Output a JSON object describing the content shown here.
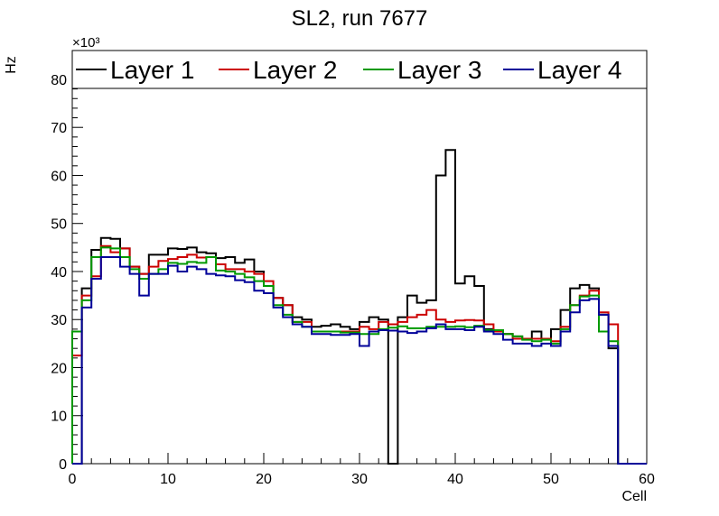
{
  "chart_data": {
    "type": "line",
    "title": "SL2, run 7677",
    "xlabel": "Cell",
    "ylabel": "Hz",
    "y_multiplier": "×10³",
    "xlim": [
      0,
      60
    ],
    "ylim": [
      0,
      86
    ],
    "x_ticks": [
      "0",
      "10",
      "20",
      "30",
      "40",
      "50",
      "60"
    ],
    "y_ticks": [
      "0",
      "10",
      "20",
      "30",
      "40",
      "50",
      "60",
      "70",
      "80"
    ],
    "bin_edges": [
      0,
      1,
      2,
      3,
      4,
      5,
      6,
      7,
      8,
      9,
      10,
      11,
      12,
      13,
      14,
      15,
      16,
      17,
      18,
      19,
      20,
      21,
      22,
      23,
      24,
      25,
      26,
      27,
      28,
      29,
      30,
      31,
      32,
      33,
      34,
      35,
      36,
      37,
      38,
      39,
      40,
      41,
      42,
      43,
      44,
      45,
      46,
      47,
      48,
      49,
      50,
      51,
      52,
      53,
      54,
      55,
      56,
      57,
      58,
      59,
      60
    ],
    "legend_position": "top, full width",
    "series": [
      {
        "name": "Layer 1",
        "color": "#000000",
        "values": [
          0,
          36.5,
          44.5,
          47,
          46.8,
          44.8,
          41,
          39.5,
          43.5,
          43.5,
          44.8,
          44.7,
          45,
          44,
          43.8,
          42.8,
          43,
          41.8,
          42.5,
          40,
          37,
          34.5,
          33,
          30.5,
          30,
          28.5,
          28.7,
          29,
          28.5,
          28,
          29.5,
          30.5,
          30,
          0,
          30.5,
          35,
          33.5,
          34,
          60,
          65.3,
          37.5,
          39,
          37,
          28,
          27.5,
          27,
          26.5,
          26,
          27.5,
          26,
          28,
          32,
          36.5,
          37.2,
          36.5,
          31,
          24,
          0,
          0,
          0
        ]
      },
      {
        "name": "Layer 2",
        "color": "#cc0000",
        "values": [
          22.5,
          35,
          39,
          45.3,
          44,
          44.8,
          41,
          39.5,
          41,
          42.2,
          42.6,
          43,
          43.5,
          42.9,
          43,
          41.5,
          40.5,
          40.5,
          40,
          39.5,
          38,
          34.5,
          33,
          29.5,
          29.5,
          27.5,
          27.5,
          27.5,
          27.5,
          27.5,
          28.5,
          28,
          29.5,
          29,
          29.5,
          30.5,
          31,
          32,
          30,
          29.5,
          29.8,
          29.9,
          29.8,
          29,
          27.5,
          27,
          26,
          26,
          26,
          26,
          25.5,
          28.5,
          33,
          35,
          36,
          31.5,
          29,
          0,
          0,
          0
        ]
      },
      {
        "name": "Layer 3",
        "color": "#009900",
        "values": [
          27.5,
          34,
          43,
          45,
          44.8,
          43,
          40.5,
          38.5,
          39.5,
          40.5,
          41.8,
          41.6,
          42,
          41.8,
          43,
          40.2,
          40,
          39.5,
          38.8,
          38,
          37,
          33,
          31,
          29.5,
          28.5,
          27.5,
          27.5,
          27.5,
          27.3,
          27.3,
          27,
          27,
          28,
          28.3,
          28.6,
          28.2,
          28.2,
          28.5,
          28.5,
          28.5,
          28.6,
          28.4,
          28.7,
          27.8,
          27.8,
          27,
          26.5,
          25.8,
          25.5,
          25.8,
          25,
          28,
          33,
          34.8,
          35,
          27.5,
          25.5,
          0,
          0,
          0
        ]
      },
      {
        "name": "Layer 4",
        "color": "#000099",
        "values": [
          0,
          32.5,
          38.5,
          43,
          43,
          41,
          39.5,
          35,
          39.5,
          39.5,
          41.2,
          40,
          41,
          40.5,
          39.5,
          39.2,
          39,
          38.2,
          37.8,
          36,
          35.5,
          32.5,
          30.5,
          29,
          28.5,
          27,
          27,
          26.8,
          26.8,
          27,
          24.5,
          27.5,
          27.8,
          27.7,
          27.5,
          27.2,
          27.5,
          28.2,
          29,
          28,
          28,
          27.8,
          28.5,
          27.5,
          27,
          25.8,
          25,
          25,
          24.5,
          25,
          24.5,
          27.5,
          31.5,
          34,
          34.3,
          31,
          24.5,
          0,
          0,
          0
        ]
      }
    ]
  }
}
